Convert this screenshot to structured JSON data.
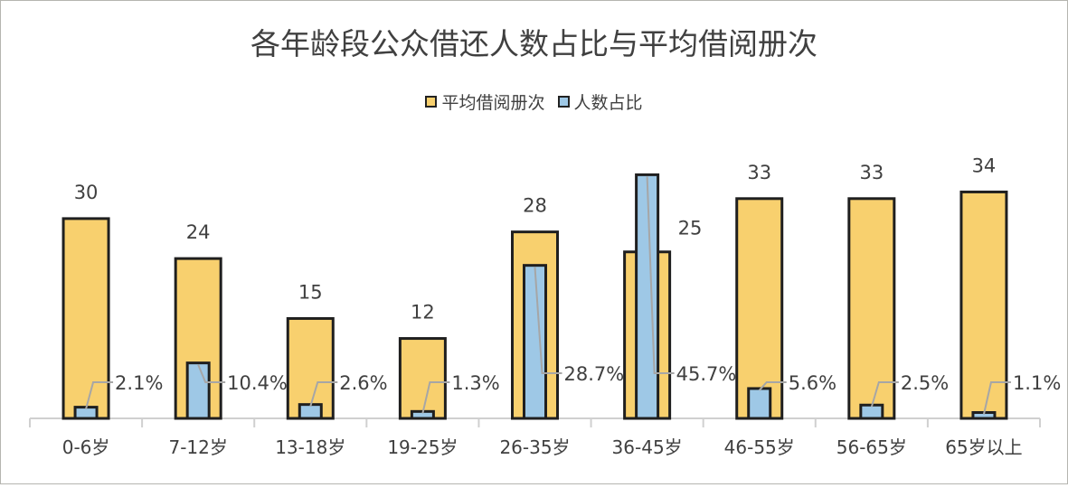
{
  "chart_data": {
    "type": "bar",
    "title": "各年龄段公众借还人数占比与平均借阅册次",
    "categories": [
      "0-6岁",
      "7-12岁",
      "13-18岁",
      "19-25岁",
      "26-35岁",
      "36-45岁",
      "46-55岁",
      "56-65岁",
      "65岁以上"
    ],
    "series": [
      {
        "name": "平均借阅册次",
        "values": [
          30,
          24,
          15,
          12,
          28,
          25,
          33,
          33,
          34
        ],
        "labels": [
          "30",
          "24",
          "15",
          "12",
          "28",
          "25",
          "33",
          "33",
          "34"
        ],
        "color": "#f8d06e"
      },
      {
        "name": "人数占比",
        "values": [
          2.1,
          10.4,
          2.6,
          1.3,
          28.7,
          45.7,
          5.6,
          2.5,
          1.1
        ],
        "labels": [
          "2.1%",
          "10.4%",
          "2.6%",
          "1.3%",
          "28.7%",
          "45.7%",
          "5.6%",
          "2.5%",
          "1.1%"
        ],
        "color": "#9ec8e6"
      }
    ],
    "legend_position": "top",
    "grid": false
  }
}
